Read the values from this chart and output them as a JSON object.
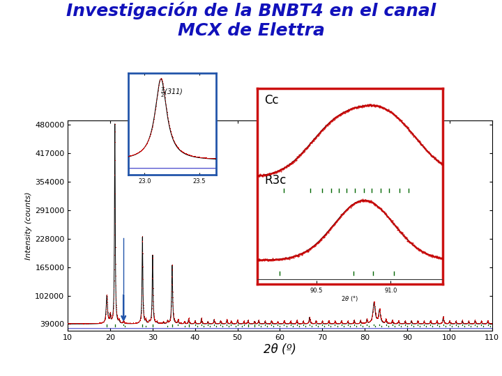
{
  "title_line1": "Investigación de la BNBT4 en el canal",
  "title_line2": "MCX de Elettra",
  "title_color": "#1111BB",
  "title_fontsize": 18,
  "xlabel": "2θ (º)",
  "ylabel": "Intensity (counts)",
  "xlim": [
    10,
    110
  ],
  "ylim": [
    -30000,
    490000
  ],
  "yticks": [
    39000,
    102000,
    165000,
    228000,
    291000,
    354000,
    417000,
    480000
  ],
  "xticks": [
    10,
    20,
    30,
    40,
    50,
    60,
    70,
    80,
    90,
    100,
    110
  ],
  "bg_color": "#ffffff",
  "plot_bg_color": "#ffffff",
  "main_line_color": "#cc0000",
  "fit_line_color": "#000000",
  "diff_line_color": "#4444cc",
  "tick_color1": "#006600",
  "tick_color2": "#006600",
  "blue_box_color": "#2255AA",
  "red_box_color": "#CC1111"
}
